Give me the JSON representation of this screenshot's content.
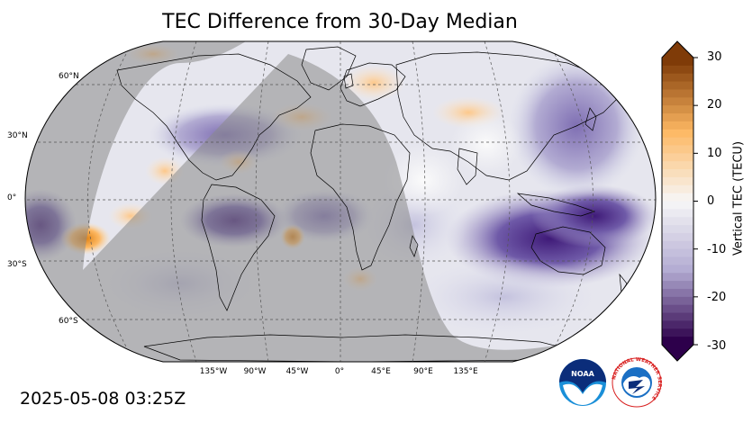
{
  "title": "TEC Difference from 30-Day Median",
  "timestamp": "2025-05-08 03:25Z",
  "map": {
    "projection": "robinson",
    "lat_labels": [
      "60°N",
      "30°N",
      "0°",
      "30°S",
      "60°S"
    ],
    "lon_labels": [
      "135°W",
      "90°W",
      "45°W",
      "0°",
      "45°E",
      "90°E",
      "135°E"
    ],
    "gridlines": true,
    "night_shading": true,
    "colors": {
      "ocean_base": "#e6e6ee",
      "night_shade": "#8a8a8a",
      "coastline": "#000000",
      "gridline": "#555555"
    }
  },
  "colorbar": {
    "label": "Vertical TEC (TECU)",
    "min": -30,
    "max": 30,
    "ticks": [
      "30",
      "20",
      "10",
      "0",
      "-10",
      "-20",
      "-30"
    ],
    "colormap": "PuOr_r",
    "colors": {
      "high": "#7f3b08",
      "mid_high": "#fdb863",
      "mid": "#f7f7f7",
      "mid_low": "#b2abd2",
      "low": "#2d004b"
    }
  },
  "logos": {
    "noaa": "NOAA",
    "nws": "NATIONAL WEATHER SERVICE"
  }
}
